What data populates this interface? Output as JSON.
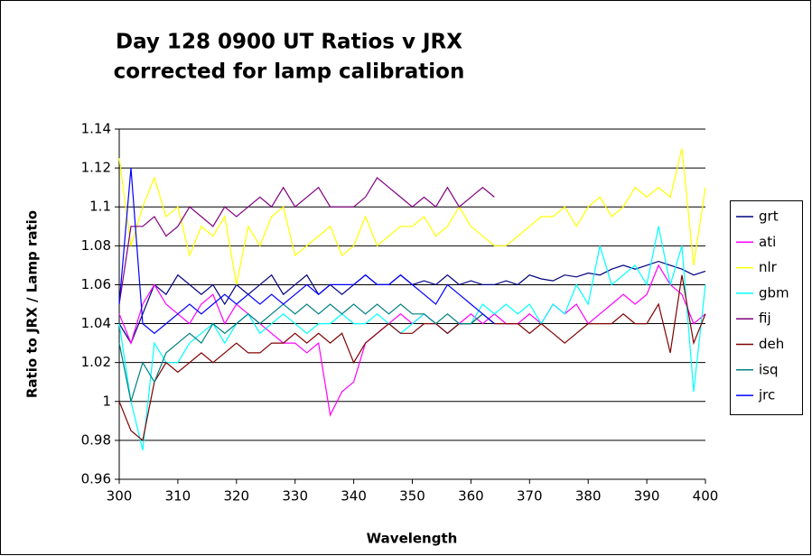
{
  "chart_data": {
    "type": "line",
    "title": [
      "Day 128 0900 UT Ratios v JRX",
      "corrected for lamp calibration"
    ],
    "x_label": "Wavelength",
    "y_label": "Ratio to JRX / Lamp ratio",
    "x": [
      300,
      302,
      304,
      306,
      308,
      310,
      312,
      314,
      316,
      318,
      320,
      322,
      324,
      326,
      328,
      330,
      332,
      334,
      336,
      338,
      340,
      342,
      344,
      346,
      348,
      350,
      352,
      354,
      356,
      358,
      360,
      362,
      364,
      366,
      368,
      370,
      372,
      374,
      376,
      378,
      380,
      382,
      384,
      386,
      388,
      390,
      392,
      394,
      396,
      398,
      400
    ],
    "xlim": [
      300,
      400
    ],
    "xticks": [
      300,
      310,
      320,
      330,
      340,
      350,
      360,
      370,
      380,
      390,
      400
    ],
    "ylim": [
      0.96,
      1.14
    ],
    "yticks": [
      0.96,
      0.98,
      1,
      1.02,
      1.04,
      1.06,
      1.08,
      1.1,
      1.12,
      1.14
    ],
    "grid": true,
    "legend": "right",
    "series": [
      {
        "name": "grt",
        "color": "#000080",
        "values": [
          1.04,
          1.03,
          1.045,
          1.06,
          1.055,
          1.065,
          1.06,
          1.055,
          1.06,
          1.05,
          1.06,
          1.055,
          1.06,
          1.065,
          1.055,
          1.06,
          1.065,
          1.055,
          1.06,
          1.055,
          1.06,
          1.065,
          1.06,
          1.06,
          1.065,
          1.06,
          1.062,
          1.06,
          1.065,
          1.06,
          1.062,
          1.06,
          1.06,
          1.062,
          1.06,
          1.065,
          1.063,
          1.062,
          1.065,
          1.064,
          1.066,
          1.065,
          1.068,
          1.07,
          1.068,
          1.07,
          1.072,
          1.07,
          1.068,
          1.065,
          1.067
        ]
      },
      {
        "name": "ati",
        "color": "#ff00ff",
        "values": [
          1.045,
          1.03,
          1.05,
          1.06,
          1.05,
          1.045,
          1.04,
          1.05,
          1.055,
          1.04,
          1.05,
          1.045,
          1.04,
          1.035,
          1.03,
          1.03,
          1.025,
          1.03,
          0.993,
          1.005,
          1.01,
          1.03,
          1.035,
          1.04,
          1.045,
          1.04,
          1.045,
          1.04,
          1.035,
          1.04,
          1.045,
          1.04,
          1.045,
          1.04,
          1.04,
          1.045,
          1.04,
          1.05,
          1.045,
          1.05,
          1.04,
          1.045,
          1.05,
          1.055,
          1.05,
          1.055,
          1.07,
          1.06,
          1.055,
          1.04,
          1.045
        ]
      },
      {
        "name": "nlr",
        "color": "#ffff00",
        "values": [
          1.125,
          1.08,
          1.1,
          1.115,
          1.095,
          1.1,
          1.075,
          1.09,
          1.085,
          1.095,
          1.06,
          1.09,
          1.08,
          1.095,
          1.1,
          1.075,
          1.08,
          1.085,
          1.09,
          1.075,
          1.08,
          1.095,
          1.08,
          1.085,
          1.09,
          1.09,
          1.095,
          1.085,
          1.09,
          1.1,
          1.09,
          1.085,
          1.08,
          1.08,
          1.085,
          1.09,
          1.095,
          1.095,
          1.1,
          1.09,
          1.1,
          1.105,
          1.095,
          1.1,
          1.11,
          1.105,
          1.11,
          1.105,
          1.13,
          1.07,
          1.11
        ]
      },
      {
        "name": "gbm",
        "color": "#00ffff",
        "values": [
          1.04,
          1.0,
          0.975,
          1.03,
          1.02,
          1.02,
          1.03,
          1.035,
          1.04,
          1.03,
          1.04,
          1.045,
          1.035,
          1.04,
          1.045,
          1.04,
          1.035,
          1.04,
          1.04,
          1.045,
          1.04,
          1.04,
          1.045,
          1.04,
          1.035,
          1.04,
          1.045,
          1.04,
          1.035,
          1.04,
          1.04,
          1.05,
          1.045,
          1.05,
          1.045,
          1.05,
          1.04,
          1.05,
          1.045,
          1.06,
          1.05,
          1.08,
          1.06,
          1.065,
          1.07,
          1.06,
          1.09,
          1.06,
          1.08,
          1.005,
          1.06
        ]
      },
      {
        "name": "fij",
        "color": "#800080",
        "values": [
          1.05,
          1.09,
          1.09,
          1.095,
          1.085,
          1.09,
          1.1,
          1.095,
          1.09,
          1.1,
          1.095,
          1.1,
          1.105,
          1.1,
          1.11,
          1.1,
          1.105,
          1.11,
          1.1,
          1.1,
          1.1,
          1.105,
          1.115,
          1.11,
          1.105,
          1.1,
          1.105,
          1.1,
          1.11,
          1.1,
          1.105,
          1.11,
          1.105,
          null,
          null,
          null,
          null,
          null,
          null,
          null,
          null,
          null,
          null,
          null,
          null,
          null,
          null,
          null,
          null,
          null,
          null
        ]
      },
      {
        "name": "deh",
        "color": "#800000",
        "values": [
          1.0,
          0.985,
          0.98,
          1.01,
          1.02,
          1.015,
          1.02,
          1.025,
          1.02,
          1.025,
          1.03,
          1.025,
          1.025,
          1.03,
          1.03,
          1.035,
          1.03,
          1.035,
          1.03,
          1.035,
          1.02,
          1.03,
          1.035,
          1.04,
          1.035,
          1.035,
          1.04,
          1.04,
          1.035,
          1.04,
          1.04,
          1.045,
          1.04,
          1.04,
          1.04,
          1.035,
          1.04,
          1.035,
          1.03,
          1.035,
          1.04,
          1.04,
          1.04,
          1.045,
          1.04,
          1.04,
          1.05,
          1.025,
          1.065,
          1.03,
          1.045
        ]
      },
      {
        "name": "isq",
        "color": "#008080",
        "values": [
          1.03,
          1.0,
          1.02,
          1.01,
          1.025,
          1.03,
          1.035,
          1.03,
          1.04,
          1.035,
          1.04,
          1.045,
          1.04,
          1.045,
          1.05,
          1.045,
          1.05,
          1.045,
          1.05,
          1.045,
          1.05,
          1.045,
          1.05,
          1.045,
          1.05,
          1.045,
          1.045,
          1.04,
          1.045,
          1.04,
          1.04,
          1.045,
          1.04,
          null,
          null,
          null,
          null,
          null,
          null,
          null,
          null,
          null,
          null,
          null,
          null,
          null,
          null,
          null,
          null,
          null,
          null
        ]
      },
      {
        "name": "jrc",
        "color": "#0000ff",
        "values": [
          1.05,
          1.12,
          1.04,
          1.035,
          1.04,
          1.045,
          1.05,
          1.045,
          1.05,
          1.055,
          1.05,
          1.055,
          1.05,
          1.055,
          1.05,
          1.055,
          1.06,
          1.055,
          1.06,
          1.06,
          1.06,
          1.065,
          1.06,
          1.06,
          1.065,
          1.06,
          1.055,
          1.05,
          1.06,
          1.055,
          1.05,
          1.045,
          1.04,
          null,
          null,
          null,
          null,
          null,
          null,
          null,
          null,
          null,
          null,
          null,
          null,
          null,
          null,
          null,
          null,
          null,
          null
        ]
      }
    ]
  }
}
